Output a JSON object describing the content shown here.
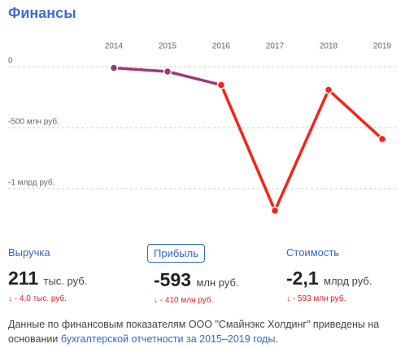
{
  "title": "Финансы",
  "chart_data": {
    "type": "line",
    "categories": [
      "2014",
      "2015",
      "2016",
      "2017",
      "2018",
      "2019"
    ],
    "series": [
      {
        "name": "Прибыль",
        "color": "#f5231b",
        "point_colors": [
          "#9b3a7a",
          "#9b3a7a",
          "#f5231b",
          "#f5231b",
          "#f5231b",
          "#f5231b"
        ],
        "values": [
          -10,
          -40,
          -150,
          -1180,
          -190,
          -593
        ]
      }
    ],
    "ylim": [
      -1250,
      150
    ],
    "yticks": [
      0,
      {
        "value": -500,
        "label": "-500 млн руб."
      },
      {
        "value": -1000,
        "label": "-1 млрд руб."
      }
    ],
    "grid": true
  },
  "metrics": [
    {
      "label": "Выручка",
      "value": "211",
      "unit": "тыс. руб.",
      "change": "↓ - 4,0 тыс. руб."
    },
    {
      "label": "Прибыль",
      "value": "-593",
      "unit": "млн руб.",
      "change": "↓ - 410 млн руб."
    },
    {
      "label": "Стоимость",
      "value": "-2,1",
      "unit": "млрд руб.",
      "change": "↓ - 593 млн руб."
    }
  ],
  "footer": {
    "text": "Данные по финансовым показателям ООО \"Смайнэкс Холдинг\" приведены на основании ",
    "link": "бухгалтерской отчетности за 2015–2019 годы",
    "text_end": "."
  }
}
